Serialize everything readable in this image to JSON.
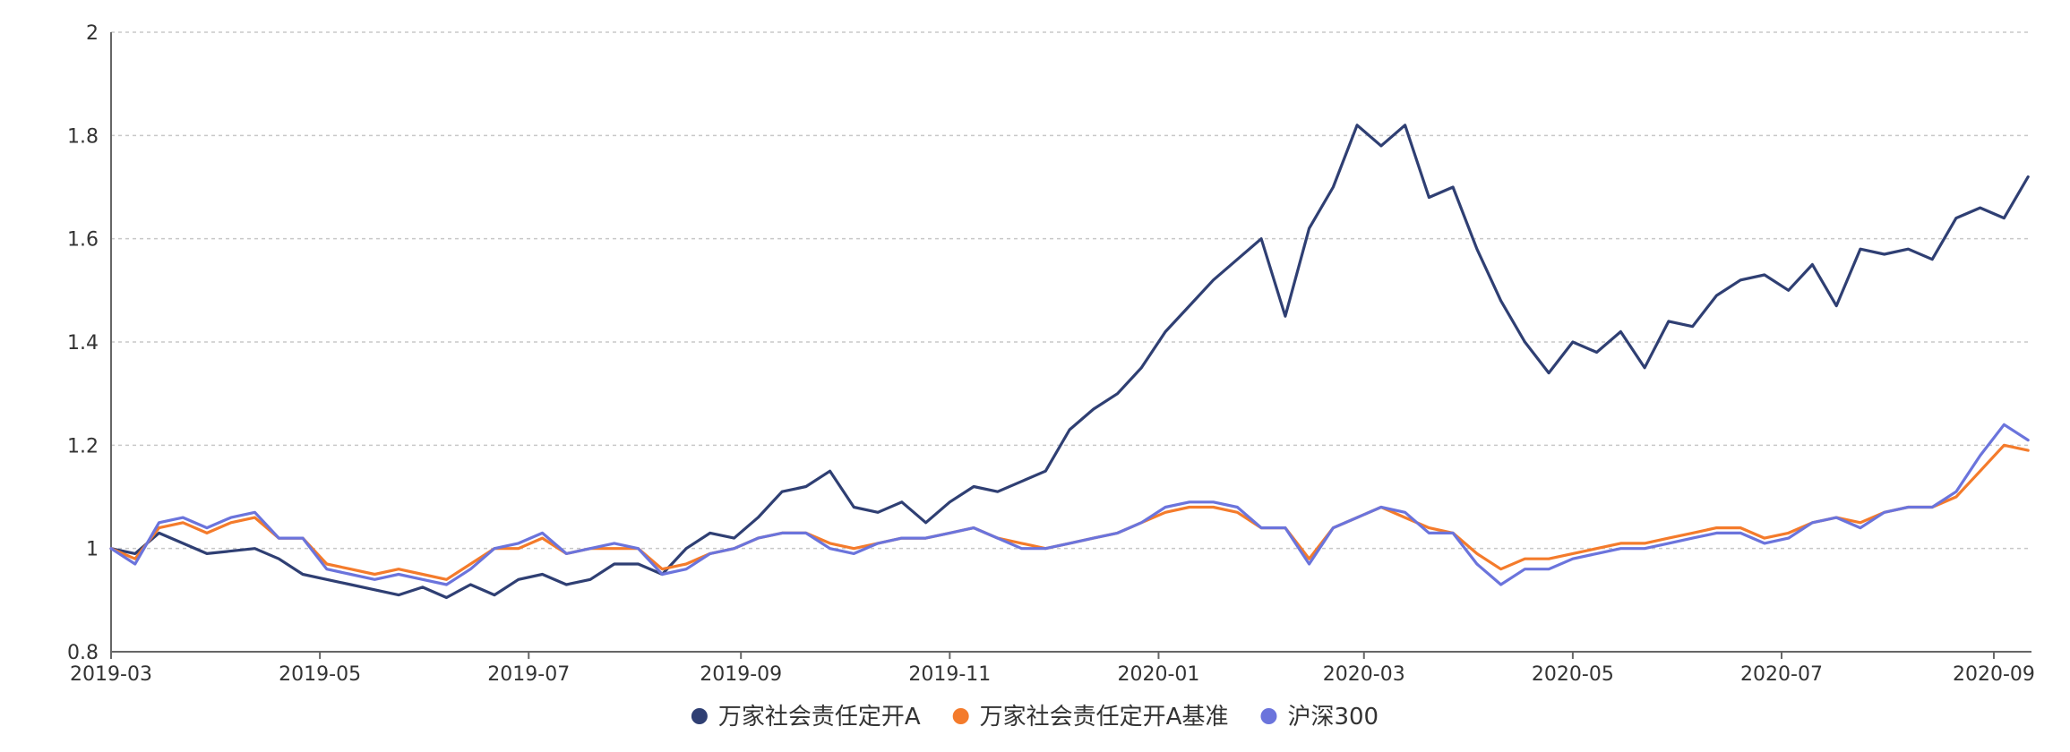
{
  "chart_data": {
    "type": "line",
    "title": "",
    "xlabel": "",
    "ylabel": "",
    "ylim": [
      0.8,
      2.0
    ],
    "yticks": [
      "0.8",
      "1",
      "1.2",
      "1.4",
      "1.6",
      "1.8",
      "2"
    ],
    "xticks": [
      "2019-03",
      "2019-05",
      "2019-07",
      "2019-09",
      "2019-11",
      "2020-01",
      "2020-03",
      "2020-05",
      "2020-07",
      "2020-09"
    ],
    "xlim": [
      "2019-03-01",
      "2020-09-12"
    ],
    "grid": true,
    "legend_position": "bottom-center",
    "series": [
      {
        "name": "万家社会责任定开A",
        "color": "#2f3f73",
        "points": [
          [
            "2019-03-01",
            1.0
          ],
          [
            "2019-03-08",
            0.99
          ],
          [
            "2019-03-15",
            1.03
          ],
          [
            "2019-03-22",
            1.01
          ],
          [
            "2019-03-29",
            0.99
          ],
          [
            "2019-04-12",
            1.0
          ],
          [
            "2019-04-19",
            0.98
          ],
          [
            "2019-04-26",
            0.95
          ],
          [
            "2019-05-03",
            0.94
          ],
          [
            "2019-05-10",
            0.93
          ],
          [
            "2019-05-17",
            0.92
          ],
          [
            "2019-05-24",
            0.91
          ],
          [
            "2019-05-31",
            0.925
          ],
          [
            "2019-06-07",
            0.905
          ],
          [
            "2019-06-14",
            0.93
          ],
          [
            "2019-06-21",
            0.91
          ],
          [
            "2019-06-28",
            0.94
          ],
          [
            "2019-07-05",
            0.95
          ],
          [
            "2019-07-12",
            0.93
          ],
          [
            "2019-07-19",
            0.94
          ],
          [
            "2019-07-26",
            0.97
          ],
          [
            "2019-08-02",
            0.97
          ],
          [
            "2019-08-09",
            0.95
          ],
          [
            "2019-08-16",
            1.0
          ],
          [
            "2019-08-23",
            1.03
          ],
          [
            "2019-08-30",
            1.02
          ],
          [
            "2019-09-06",
            1.06
          ],
          [
            "2019-09-13",
            1.11
          ],
          [
            "2019-09-20",
            1.12
          ],
          [
            "2019-09-27",
            1.15
          ],
          [
            "2019-10-04",
            1.08
          ],
          [
            "2019-10-11",
            1.07
          ],
          [
            "2019-10-18",
            1.09
          ],
          [
            "2019-10-25",
            1.05
          ],
          [
            "2019-11-01",
            1.09
          ],
          [
            "2019-11-08",
            1.12
          ],
          [
            "2019-11-15",
            1.11
          ],
          [
            "2019-11-22",
            1.13
          ],
          [
            "2019-11-29",
            1.15
          ],
          [
            "2019-12-06",
            1.23
          ],
          [
            "2019-12-13",
            1.27
          ],
          [
            "2019-12-20",
            1.3
          ],
          [
            "2019-12-27",
            1.35
          ],
          [
            "2020-01-03",
            1.42
          ],
          [
            "2020-01-10",
            1.47
          ],
          [
            "2020-01-17",
            1.52
          ],
          [
            "2020-01-24",
            1.56
          ],
          [
            "2020-01-31",
            1.6
          ],
          [
            "2020-02-07",
            1.45
          ],
          [
            "2020-02-14",
            1.62
          ],
          [
            "2020-02-21",
            1.7
          ],
          [
            "2020-02-28",
            1.82
          ],
          [
            "2020-03-06",
            1.78
          ],
          [
            "2020-03-13",
            1.82
          ],
          [
            "2020-03-20",
            1.68
          ],
          [
            "2020-03-27",
            1.7
          ],
          [
            "2020-04-03",
            1.58
          ],
          [
            "2020-04-10",
            1.48
          ],
          [
            "2020-04-17",
            1.4
          ],
          [
            "2020-04-24",
            1.34
          ],
          [
            "2020-05-01",
            1.4
          ],
          [
            "2020-05-08",
            1.38
          ],
          [
            "2020-05-15",
            1.42
          ],
          [
            "2020-05-22",
            1.35
          ],
          [
            "2020-05-29",
            1.44
          ],
          [
            "2020-06-05",
            1.43
          ],
          [
            "2020-06-12",
            1.49
          ],
          [
            "2020-06-19",
            1.52
          ],
          [
            "2020-06-26",
            1.53
          ],
          [
            "2020-07-03",
            1.5
          ],
          [
            "2020-07-10",
            1.55
          ],
          [
            "2020-07-17",
            1.47
          ],
          [
            "2020-07-24",
            1.58
          ],
          [
            "2020-07-31",
            1.57
          ],
          [
            "2020-08-07",
            1.58
          ],
          [
            "2020-08-14",
            1.56
          ],
          [
            "2020-08-21",
            1.64
          ],
          [
            "2020-08-28",
            1.66
          ],
          [
            "2020-09-04",
            1.64
          ],
          [
            "2020-09-11",
            1.72
          ]
        ]
      },
      {
        "name": "万家社会责任定开A基准",
        "color": "#f47b2b",
        "points": [
          [
            "2019-03-01",
            1.0
          ],
          [
            "2019-03-08",
            0.98
          ],
          [
            "2019-03-15",
            1.04
          ],
          [
            "2019-03-22",
            1.05
          ],
          [
            "2019-03-29",
            1.03
          ],
          [
            "2019-04-05",
            1.05
          ],
          [
            "2019-04-12",
            1.06
          ],
          [
            "2019-04-19",
            1.02
          ],
          [
            "2019-04-26",
            1.02
          ],
          [
            "2019-05-03",
            0.97
          ],
          [
            "2019-05-10",
            0.96
          ],
          [
            "2019-05-17",
            0.95
          ],
          [
            "2019-05-24",
            0.96
          ],
          [
            "2019-05-31",
            0.95
          ],
          [
            "2019-06-07",
            0.94
          ],
          [
            "2019-06-14",
            0.97
          ],
          [
            "2019-06-21",
            1.0
          ],
          [
            "2019-06-28",
            1.0
          ],
          [
            "2019-07-05",
            1.02
          ],
          [
            "2019-07-12",
            0.99
          ],
          [
            "2019-07-19",
            1.0
          ],
          [
            "2019-07-26",
            1.0
          ],
          [
            "2019-08-02",
            1.0
          ],
          [
            "2019-08-09",
            0.96
          ],
          [
            "2019-08-16",
            0.97
          ],
          [
            "2019-08-23",
            0.99
          ],
          [
            "2019-08-30",
            1.0
          ],
          [
            "2019-09-06",
            1.02
          ],
          [
            "2019-09-13",
            1.03
          ],
          [
            "2019-09-20",
            1.03
          ],
          [
            "2019-09-27",
            1.01
          ],
          [
            "2019-10-04",
            1.0
          ],
          [
            "2019-10-11",
            1.01
          ],
          [
            "2019-10-18",
            1.02
          ],
          [
            "2019-10-25",
            1.02
          ],
          [
            "2019-11-01",
            1.03
          ],
          [
            "2019-11-08",
            1.04
          ],
          [
            "2019-11-15",
            1.02
          ],
          [
            "2019-11-22",
            1.01
          ],
          [
            "2019-11-29",
            1.0
          ],
          [
            "2019-12-06",
            1.01
          ],
          [
            "2019-12-13",
            1.02
          ],
          [
            "2019-12-20",
            1.03
          ],
          [
            "2019-12-27",
            1.05
          ],
          [
            "2020-01-03",
            1.07
          ],
          [
            "2020-01-10",
            1.08
          ],
          [
            "2020-01-17",
            1.08
          ],
          [
            "2020-01-24",
            1.07
          ],
          [
            "2020-01-31",
            1.04
          ],
          [
            "2020-02-07",
            1.04
          ],
          [
            "2020-02-14",
            0.98
          ],
          [
            "2020-02-21",
            1.04
          ],
          [
            "2020-02-28",
            1.06
          ],
          [
            "2020-03-06",
            1.08
          ],
          [
            "2020-03-13",
            1.06
          ],
          [
            "2020-03-20",
            1.04
          ],
          [
            "2020-03-27",
            1.03
          ],
          [
            "2020-04-03",
            0.99
          ],
          [
            "2020-04-10",
            0.96
          ],
          [
            "2020-04-17",
            0.98
          ],
          [
            "2020-04-24",
            0.98
          ],
          [
            "2020-05-01",
            0.99
          ],
          [
            "2020-05-08",
            1.0
          ],
          [
            "2020-05-15",
            1.01
          ],
          [
            "2020-05-22",
            1.01
          ],
          [
            "2020-05-29",
            1.02
          ],
          [
            "2020-06-05",
            1.03
          ],
          [
            "2020-06-12",
            1.04
          ],
          [
            "2020-06-19",
            1.04
          ],
          [
            "2020-06-26",
            1.02
          ],
          [
            "2020-07-03",
            1.03
          ],
          [
            "2020-07-10",
            1.05
          ],
          [
            "2020-07-17",
            1.06
          ],
          [
            "2020-07-24",
            1.05
          ],
          [
            "2020-07-31",
            1.07
          ],
          [
            "2020-08-07",
            1.08
          ],
          [
            "2020-08-14",
            1.08
          ],
          [
            "2020-08-21",
            1.1
          ],
          [
            "2020-08-28",
            1.15
          ],
          [
            "2020-09-04",
            1.2
          ],
          [
            "2020-09-11",
            1.19
          ]
        ]
      },
      {
        "name": "沪深300",
        "color": "#6b74dc",
        "points": [
          [
            "2019-03-01",
            1.0
          ],
          [
            "2019-03-08",
            0.97
          ],
          [
            "2019-03-15",
            1.05
          ],
          [
            "2019-03-22",
            1.06
          ],
          [
            "2019-03-29",
            1.04
          ],
          [
            "2019-04-05",
            1.06
          ],
          [
            "2019-04-12",
            1.07
          ],
          [
            "2019-04-19",
            1.02
          ],
          [
            "2019-04-26",
            1.02
          ],
          [
            "2019-05-03",
            0.96
          ],
          [
            "2019-05-10",
            0.95
          ],
          [
            "2019-05-17",
            0.94
          ],
          [
            "2019-05-24",
            0.95
          ],
          [
            "2019-05-31",
            0.94
          ],
          [
            "2019-06-07",
            0.93
          ],
          [
            "2019-06-14",
            0.96
          ],
          [
            "2019-06-21",
            1.0
          ],
          [
            "2019-06-28",
            1.01
          ],
          [
            "2019-07-05",
            1.03
          ],
          [
            "2019-07-12",
            0.99
          ],
          [
            "2019-07-19",
            1.0
          ],
          [
            "2019-07-26",
            1.01
          ],
          [
            "2019-08-02",
            1.0
          ],
          [
            "2019-08-09",
            0.95
          ],
          [
            "2019-08-16",
            0.96
          ],
          [
            "2019-08-23",
            0.99
          ],
          [
            "2019-08-30",
            1.0
          ],
          [
            "2019-09-06",
            1.02
          ],
          [
            "2019-09-13",
            1.03
          ],
          [
            "2019-09-20",
            1.03
          ],
          [
            "2019-09-27",
            1.0
          ],
          [
            "2019-10-04",
            0.99
          ],
          [
            "2019-10-11",
            1.01
          ],
          [
            "2019-10-18",
            1.02
          ],
          [
            "2019-10-25",
            1.02
          ],
          [
            "2019-11-01",
            1.03
          ],
          [
            "2019-11-08",
            1.04
          ],
          [
            "2019-11-15",
            1.02
          ],
          [
            "2019-11-22",
            1.0
          ],
          [
            "2019-11-29",
            1.0
          ],
          [
            "2019-12-06",
            1.01
          ],
          [
            "2019-12-13",
            1.02
          ],
          [
            "2019-12-20",
            1.03
          ],
          [
            "2019-12-27",
            1.05
          ],
          [
            "2020-01-03",
            1.08
          ],
          [
            "2020-01-10",
            1.09
          ],
          [
            "2020-01-17",
            1.09
          ],
          [
            "2020-01-24",
            1.08
          ],
          [
            "2020-01-31",
            1.04
          ],
          [
            "2020-02-07",
            1.04
          ],
          [
            "2020-02-14",
            0.97
          ],
          [
            "2020-02-21",
            1.04
          ],
          [
            "2020-02-28",
            1.06
          ],
          [
            "2020-03-06",
            1.08
          ],
          [
            "2020-03-13",
            1.07
          ],
          [
            "2020-03-20",
            1.03
          ],
          [
            "2020-03-27",
            1.03
          ],
          [
            "2020-04-03",
            0.97
          ],
          [
            "2020-04-10",
            0.93
          ],
          [
            "2020-04-17",
            0.96
          ],
          [
            "2020-04-24",
            0.96
          ],
          [
            "2020-05-01",
            0.98
          ],
          [
            "2020-05-08",
            0.99
          ],
          [
            "2020-05-15",
            1.0
          ],
          [
            "2020-05-22",
            1.0
          ],
          [
            "2020-05-29",
            1.01
          ],
          [
            "2020-06-05",
            1.02
          ],
          [
            "2020-06-12",
            1.03
          ],
          [
            "2020-06-19",
            1.03
          ],
          [
            "2020-06-26",
            1.01
          ],
          [
            "2020-07-03",
            1.02
          ],
          [
            "2020-07-10",
            1.05
          ],
          [
            "2020-07-17",
            1.06
          ],
          [
            "2020-07-24",
            1.04
          ],
          [
            "2020-07-31",
            1.07
          ],
          [
            "2020-08-07",
            1.08
          ],
          [
            "2020-08-14",
            1.08
          ],
          [
            "2020-08-21",
            1.11
          ],
          [
            "2020-08-28",
            1.18
          ],
          [
            "2020-09-04",
            1.24
          ],
          [
            "2020-09-11",
            1.21
          ]
        ]
      }
    ]
  }
}
